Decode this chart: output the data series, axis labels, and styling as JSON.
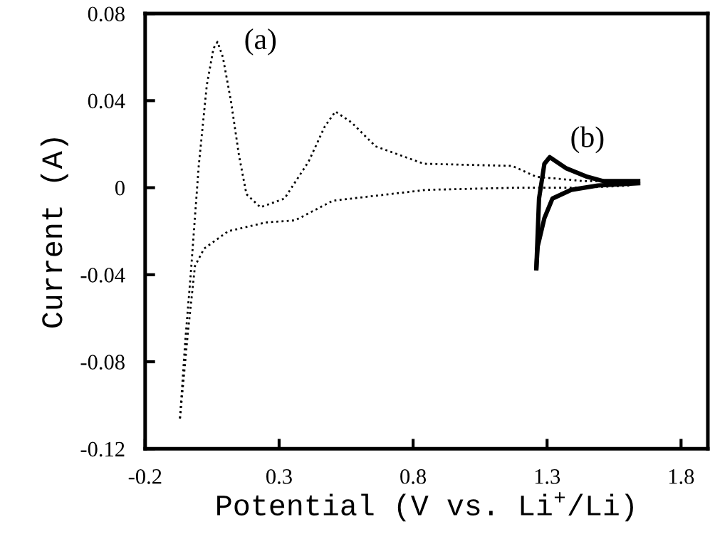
{
  "chart_data": {
    "type": "line",
    "xlabel": "Potential (V vs. Li$^{+}$/Li)",
    "ylabel": "Current (A)",
    "xlim": [
      -0.2,
      1.9
    ],
    "xticks": [
      -0.2,
      0.3,
      0.8,
      1.3,
      1.8
    ],
    "ylim": [
      -0.12,
      0.08
    ],
    "yticks": [
      {
        "value": -0.12,
        "label": "-0.12"
      },
      {
        "value": -0.08,
        "label": "-0.08"
      },
      {
        "value": -0.04,
        "label": "-0.04"
      },
      {
        "value": 0,
        "label": "0"
      },
      {
        "value": 0.04,
        "label": "0.04"
      },
      {
        "value": 0.08,
        "label": "0.08"
      }
    ],
    "grid": false,
    "legend": false,
    "marker": "none",
    "annotations": [
      "(a)",
      "(b)"
    ],
    "series": [
      {
        "color": "#000000",
        "line_style": "dotted",
        "x": [
          -0.07,
          -0.05,
          -0.03,
          0.0,
          0.03,
          0.055,
          0.07,
          0.09,
          0.12,
          0.15,
          0.178,
          0.23,
          0.32,
          0.41,
          0.47,
          0.51,
          0.57,
          0.66,
          0.84,
          1.17,
          1.26,
          1.44,
          1.63
        ],
        "values": [
          -0.106,
          -0.07,
          -0.04,
          0.01,
          0.047,
          0.064,
          0.067,
          0.06,
          0.04,
          0.015,
          -0.003,
          -0.009,
          -0.005,
          0.012,
          0.028,
          0.035,
          0.03,
          0.019,
          0.011,
          0.01,
          0.005,
          0.003,
          0.003
        ]
      },
      {
        "color": "#000000",
        "line_style": "dotted",
        "x": [
          -0.07,
          -0.04,
          -0.014,
          0.02,
          0.11,
          0.25,
          0.36,
          0.5,
          0.85,
          1.19,
          1.44,
          1.61
        ],
        "values": [
          -0.106,
          -0.066,
          -0.036,
          -0.028,
          -0.02,
          -0.016,
          -0.015,
          -0.006,
          -0.001,
          0.0,
          0.0,
          0.001
        ]
      },
      {
        "color": "#000000",
        "line_style": "solid",
        "x": [
          1.26,
          1.27,
          1.29,
          1.31,
          1.37,
          1.45,
          1.51,
          1.64
        ],
        "values": [
          -0.037,
          -0.005,
          0.011,
          0.014,
          0.009,
          0.005,
          0.003,
          0.003
        ]
      },
      {
        "color": "#000000",
        "line_style": "solid",
        "x": [
          1.26,
          1.265,
          1.29,
          1.32,
          1.39,
          1.49,
          1.64
        ],
        "values": [
          -0.037,
          -0.027,
          -0.014,
          -0.005,
          -0.001,
          0.001,
          0.002
        ]
      }
    ]
  }
}
